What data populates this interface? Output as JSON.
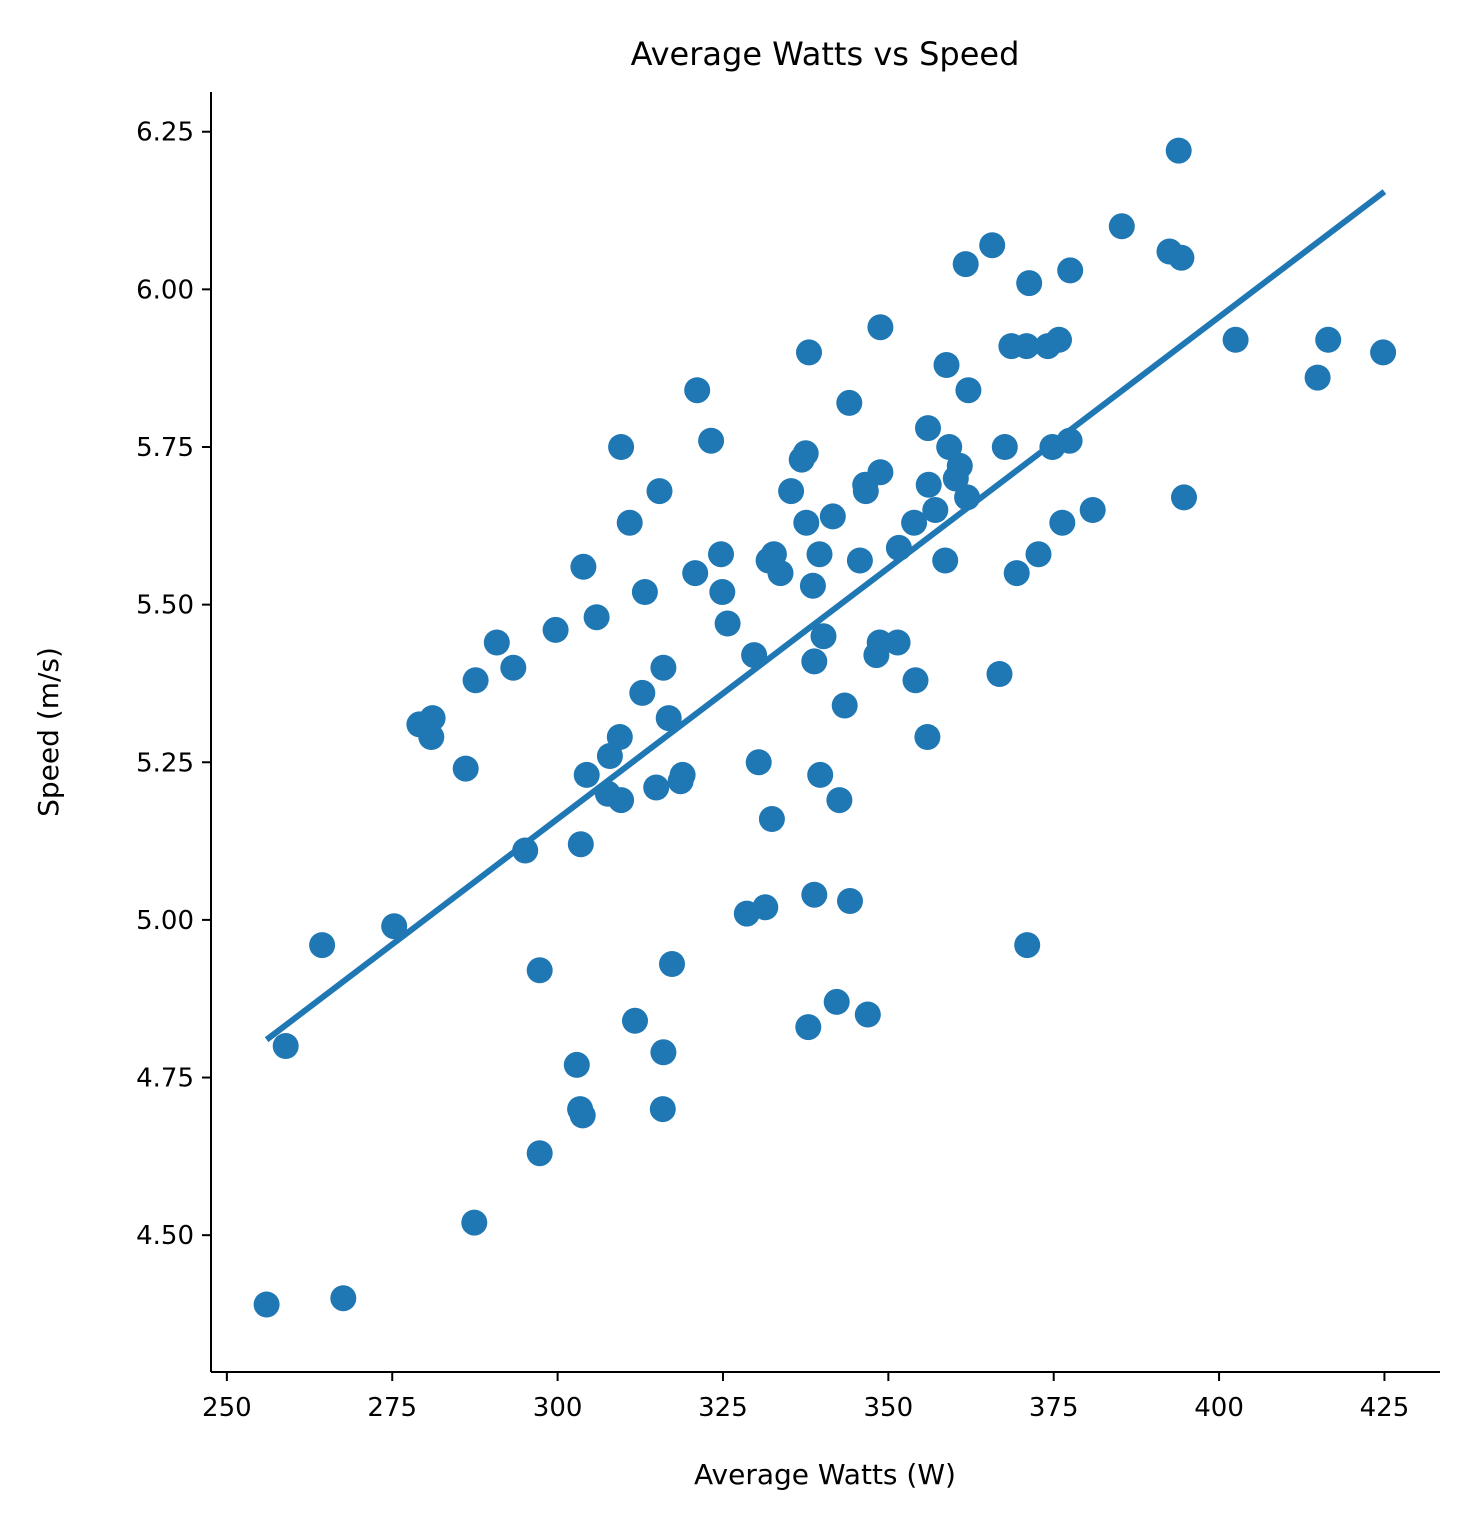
{
  "chart_data": {
    "type": "scatter",
    "title": "Average Watts vs Speed",
    "xlabel": "Average Watts (W)",
    "ylabel": "Speed (m/s)",
    "xlim": [
      247.6,
      433.4
    ],
    "ylim": [
      4.283,
      6.313
    ],
    "xticks": [
      250,
      275,
      300,
      325,
      350,
      375,
      400,
      425
    ],
    "xtick_labels": [
      "250",
      "275",
      "300",
      "325",
      "350",
      "375",
      "400",
      "425"
    ],
    "yticks": [
      4.5,
      4.75,
      5.0,
      5.25,
      5.5,
      5.75,
      6.0,
      6.25
    ],
    "ytick_labels": [
      "4.50",
      "4.75",
      "5.00",
      "5.25",
      "5.50",
      "5.75",
      "6.00",
      "6.25"
    ],
    "grid": false,
    "legend": false,
    "marker_color": "#1f77b4",
    "line_color": "#1f77b4",
    "points": [
      [
        256.0,
        4.39
      ],
      [
        258.9,
        4.8
      ],
      [
        264.4,
        4.96
      ],
      [
        267.6,
        4.4
      ],
      [
        275.3,
        4.99
      ],
      [
        279.1,
        5.31
      ],
      [
        280.9,
        5.29
      ],
      [
        281.1,
        5.32
      ],
      [
        286.1,
        5.24
      ],
      [
        287.4,
        4.52
      ],
      [
        287.6,
        5.38
      ],
      [
        290.8,
        5.44
      ],
      [
        293.3,
        5.4
      ],
      [
        295.1,
        5.11
      ],
      [
        297.3,
        4.92
      ],
      [
        297.3,
        4.63
      ],
      [
        299.7,
        5.46
      ],
      [
        302.9,
        4.77
      ],
      [
        303.4,
        4.7
      ],
      [
        303.5,
        5.12
      ],
      [
        303.8,
        4.69
      ],
      [
        303.9,
        5.56
      ],
      [
        304.4,
        5.23
      ],
      [
        305.9,
        5.48
      ],
      [
        307.6,
        5.2
      ],
      [
        307.9,
        5.26
      ],
      [
        309.4,
        5.29
      ],
      [
        309.6,
        5.19
      ],
      [
        309.6,
        5.75
      ],
      [
        310.9,
        5.63
      ],
      [
        311.7,
        4.84
      ],
      [
        312.8,
        5.36
      ],
      [
        313.2,
        5.52
      ],
      [
        314.9,
        5.21
      ],
      [
        315.4,
        5.68
      ],
      [
        315.9,
        4.7
      ],
      [
        316.0,
        5.4
      ],
      [
        316.0,
        4.79
      ],
      [
        316.8,
        5.32
      ],
      [
        317.3,
        4.93
      ],
      [
        318.6,
        5.22
      ],
      [
        318.9,
        5.23
      ],
      [
        320.8,
        5.55
      ],
      [
        321.1,
        5.84
      ],
      [
        323.2,
        5.76
      ],
      [
        324.7,
        5.58
      ],
      [
        324.9,
        5.52
      ],
      [
        325.7,
        5.47
      ],
      [
        328.6,
        5.01
      ],
      [
        329.7,
        5.42
      ],
      [
        330.4,
        5.25
      ],
      [
        331.4,
        5.02
      ],
      [
        331.9,
        5.57
      ],
      [
        332.4,
        5.16
      ],
      [
        332.7,
        5.58
      ],
      [
        333.7,
        5.55
      ],
      [
        335.3,
        5.68
      ],
      [
        336.9,
        5.73
      ],
      [
        337.5,
        5.74
      ],
      [
        337.6,
        5.63
      ],
      [
        337.9,
        4.83
      ],
      [
        338.0,
        5.9
      ],
      [
        338.6,
        5.53
      ],
      [
        338.8,
        5.41
      ],
      [
        338.8,
        5.04
      ],
      [
        339.6,
        5.58
      ],
      [
        339.7,
        5.23
      ],
      [
        340.2,
        5.45
      ],
      [
        341.6,
        5.64
      ],
      [
        342.2,
        4.87
      ],
      [
        342.6,
        5.19
      ],
      [
        343.4,
        5.34
      ],
      [
        344.1,
        5.82
      ],
      [
        344.2,
        5.03
      ],
      [
        345.7,
        5.57
      ],
      [
        346.5,
        5.69
      ],
      [
        346.6,
        5.68
      ],
      [
        346.9,
        4.85
      ],
      [
        348.2,
        5.42
      ],
      [
        348.7,
        5.44
      ],
      [
        348.8,
        5.71
      ],
      [
        348.8,
        5.94
      ],
      [
        351.4,
        5.44
      ],
      [
        351.6,
        5.59
      ],
      [
        353.9,
        5.63
      ],
      [
        354.1,
        5.38
      ],
      [
        355.9,
        5.29
      ],
      [
        356.0,
        5.78
      ],
      [
        356.1,
        5.69
      ],
      [
        357.1,
        5.65
      ],
      [
        358.6,
        5.57
      ],
      [
        358.8,
        5.88
      ],
      [
        359.2,
        5.75
      ],
      [
        360.2,
        5.7
      ],
      [
        360.8,
        5.72
      ],
      [
        361.7,
        6.04
      ],
      [
        362.1,
        5.84
      ],
      [
        361.9,
        5.67
      ],
      [
        365.7,
        6.07
      ],
      [
        366.8,
        5.39
      ],
      [
        367.6,
        5.75
      ],
      [
        368.6,
        5.91
      ],
      [
        369.4,
        5.55
      ],
      [
        370.9,
        5.91
      ],
      [
        371.0,
        4.96
      ],
      [
        371.3,
        6.01
      ],
      [
        372.7,
        5.58
      ],
      [
        374.1,
        5.91
      ],
      [
        374.8,
        5.75
      ],
      [
        375.8,
        5.92
      ],
      [
        376.3,
        5.63
      ],
      [
        377.4,
        5.76
      ],
      [
        377.5,
        6.03
      ],
      [
        380.9,
        5.65
      ],
      [
        385.3,
        6.1
      ],
      [
        392.5,
        6.06
      ],
      [
        393.9,
        6.22
      ],
      [
        394.3,
        6.05
      ],
      [
        394.7,
        5.67
      ],
      [
        402.5,
        5.92
      ],
      [
        414.9,
        5.86
      ],
      [
        416.5,
        5.92
      ],
      [
        424.8,
        5.9
      ]
    ],
    "trend_line": {
      "x": [
        256.0,
        425.0
      ],
      "y": [
        4.81,
        6.155
      ]
    }
  }
}
